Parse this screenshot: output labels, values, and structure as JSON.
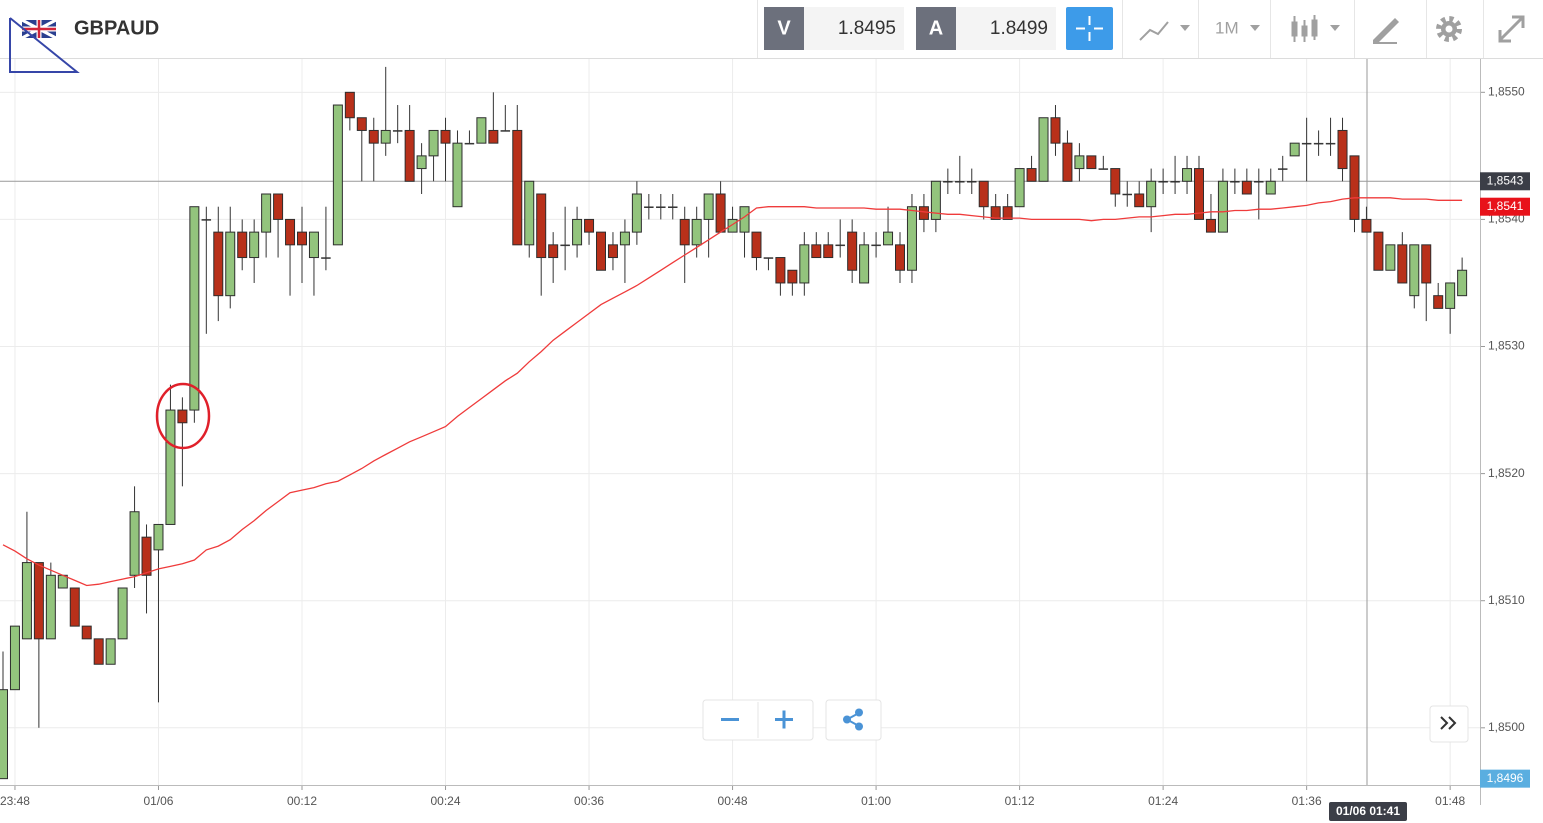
{
  "header": {
    "symbol": "GBPAUD",
    "bid_label": "V",
    "bid": 1.8495,
    "ask_label": "A",
    "ask": 1.8499,
    "timeframe": "1M"
  },
  "chart_data": {
    "type": "candlestick",
    "categories": [
      null,
      "23:48",
      null,
      null,
      null,
      null,
      null,
      null,
      null,
      null,
      null,
      null,
      null,
      "01/06",
      null,
      null,
      null,
      null,
      null,
      null,
      null,
      null,
      null,
      null,
      null,
      "00:12",
      null,
      null,
      null,
      null,
      null,
      null,
      null,
      null,
      null,
      null,
      null,
      "00:24",
      null,
      null,
      null,
      null,
      null,
      null,
      null,
      null,
      null,
      null,
      null,
      "00:36",
      null,
      null,
      null,
      null,
      null,
      null,
      null,
      null,
      null,
      null,
      null,
      "00:48",
      null,
      null,
      null,
      null,
      null,
      null,
      null,
      null,
      null,
      null,
      null,
      "01:00",
      null,
      null,
      null,
      null,
      null,
      null,
      null,
      null,
      null,
      null,
      null,
      "01:12",
      null,
      null,
      null,
      null,
      null,
      null,
      null,
      null,
      null,
      null,
      null,
      "01:24",
      null,
      null,
      null,
      null,
      null,
      null,
      null,
      null,
      null,
      null,
      null,
      "01:36",
      null,
      null,
      null,
      null,
      null,
      null,
      null,
      null,
      null,
      null,
      null,
      "01:48",
      null
    ],
    "open": [
      1.8496,
      1.8503,
      1.8507,
      1.8513,
      1.8507,
      1.8511,
      1.8511,
      1.8508,
      1.8507,
      1.8505,
      1.8507,
      1.8512,
      1.8515,
      1.8514,
      1.8516,
      1.8525,
      1.8525,
      1.854,
      1.8539,
      1.8534,
      1.8539,
      1.8537,
      1.8539,
      1.8542,
      1.854,
      1.8539,
      1.8537,
      1.8537,
      1.8538,
      1.855,
      1.8548,
      1.8547,
      1.8546,
      1.8547,
      1.8547,
      1.8544,
      1.8545,
      1.8547,
      1.8541,
      1.8546,
      1.8546,
      1.8547,
      1.8547,
      1.8547,
      1.8538,
      1.8542,
      1.8538,
      1.8538,
      1.8538,
      1.854,
      1.8539,
      1.8538,
      1.8538,
      1.8539,
      1.8541,
      1.8541,
      1.8541,
      1.854,
      1.8538,
      1.854,
      1.8542,
      1.8539,
      1.8539,
      1.8539,
      1.8537,
      1.8537,
      1.8536,
      1.8535,
      1.8538,
      1.8538,
      1.8538,
      1.8539,
      1.8535,
      1.8538,
      1.8538,
      1.8538,
      1.8536,
      1.8541,
      1.854,
      1.8543,
      1.8543,
      1.8543,
      1.8543,
      1.8541,
      1.8541,
      1.8541,
      1.8544,
      1.8543,
      1.8548,
      1.8546,
      1.8544,
      1.8545,
      1.8544,
      1.8544,
      1.8542,
      1.8542,
      1.8541,
      1.8543,
      1.8543,
      1.8543,
      1.8544,
      1.854,
      1.8539,
      1.8543,
      1.8543,
      1.8543,
      1.8542,
      1.8544,
      1.8545,
      1.8546,
      1.8546,
      1.8546,
      1.8547,
      1.8545,
      1.854,
      1.8539,
      1.8536,
      1.8538,
      1.8534,
      1.8538,
      1.8534,
      1.8533,
      1.8534
    ],
    "high": [
      1.8506,
      1.8508,
      1.8517,
      1.8513,
      1.8513,
      1.8512,
      1.8511,
      1.8508,
      1.8507,
      1.8507,
      1.8511,
      1.8519,
      1.8516,
      1.8516,
      1.8527,
      1.8526,
      1.8541,
      1.8541,
      1.8541,
      1.8541,
      1.854,
      1.854,
      1.8542,
      1.8542,
      1.854,
      1.8541,
      1.8539,
      1.8541,
      1.8549,
      1.855,
      1.8548,
      1.8548,
      1.8552,
      1.8549,
      1.8549,
      1.8546,
      1.8547,
      1.8548,
      1.8547,
      1.8547,
      1.8548,
      1.855,
      1.8549,
      1.8549,
      1.8543,
      1.8542,
      1.8539,
      1.8541,
      1.8541,
      1.854,
      1.8539,
      1.8539,
      1.854,
      1.8543,
      1.8542,
      1.8542,
      1.8542,
      1.8541,
      1.8541,
      1.8542,
      1.8543,
      1.8541,
      1.8541,
      1.8539,
      1.8537,
      1.8537,
      1.8536,
      1.8539,
      1.8539,
      1.8539,
      1.854,
      1.854,
      1.8539,
      1.8539,
      1.8541,
      1.8539,
      1.8542,
      1.8542,
      1.8543,
      1.8544,
      1.8545,
      1.8544,
      1.8543,
      1.8542,
      1.8542,
      1.8544,
      1.8545,
      1.8548,
      1.8549,
      1.8547,
      1.8546,
      1.8545,
      1.8545,
      1.8544,
      1.8543,
      1.8543,
      1.8544,
      1.8544,
      1.8545,
      1.8545,
      1.8545,
      1.8542,
      1.8544,
      1.8544,
      1.8544,
      1.8544,
      1.8544,
      1.8545,
      1.8546,
      1.8548,
      1.8547,
      1.8548,
      1.8548,
      1.8545,
      1.8541,
      1.8539,
      1.8538,
      1.8539,
      1.8538,
      1.8538,
      1.8535,
      1.8535,
      1.8537
    ],
    "low": [
      1.8496,
      1.8503,
      1.8507,
      1.85,
      1.8507,
      1.8511,
      1.8508,
      1.8507,
      1.8505,
      1.8505,
      1.8507,
      1.8511,
      1.8509,
      1.8502,
      1.8516,
      1.8519,
      1.8524,
      1.8531,
      1.8532,
      1.8533,
      1.8536,
      1.8535,
      1.8537,
      1.8537,
      1.8534,
      1.8535,
      1.8534,
      1.8536,
      1.8538,
      1.8547,
      1.8543,
      1.8543,
      1.8545,
      1.8546,
      1.8543,
      1.8542,
      1.8543,
      1.8543,
      1.8541,
      1.8546,
      1.8546,
      1.8546,
      1.8547,
      1.8538,
      1.8537,
      1.8534,
      1.8535,
      1.8536,
      1.8537,
      1.8538,
      1.8536,
      1.8536,
      1.8535,
      1.8538,
      1.854,
      1.854,
      1.854,
      1.8535,
      1.8537,
      1.8537,
      1.8539,
      1.8539,
      1.8537,
      1.8536,
      1.8536,
      1.8534,
      1.8534,
      1.8534,
      1.8537,
      1.8537,
      1.8537,
      1.8535,
      1.8535,
      1.8537,
      1.8538,
      1.8535,
      1.8535,
      1.8539,
      1.8539,
      1.8542,
      1.8542,
      1.8542,
      1.854,
      1.854,
      1.854,
      1.8541,
      1.8543,
      1.8543,
      1.8545,
      1.8543,
      1.8543,
      1.8544,
      1.8544,
      1.8541,
      1.8541,
      1.8541,
      1.8539,
      1.8542,
      1.8542,
      1.8542,
      1.854,
      1.8539,
      1.8539,
      1.8542,
      1.8542,
      1.854,
      1.8542,
      1.8543,
      1.8545,
      1.8543,
      1.8545,
      1.8545,
      1.8543,
      1.8539,
      1.8539,
      1.8536,
      1.8536,
      1.8535,
      1.8533,
      1.8532,
      1.8533,
      1.8531,
      1.8534
    ],
    "close": [
      1.8503,
      1.8508,
      1.8513,
      1.8507,
      1.8512,
      1.8512,
      1.8508,
      1.8507,
      1.8505,
      1.8507,
      1.8511,
      1.8517,
      1.8512,
      1.8516,
      1.8525,
      1.8524,
      1.8541,
      1.854,
      1.8534,
      1.8539,
      1.8537,
      1.8539,
      1.8542,
      1.854,
      1.8538,
      1.8538,
      1.8539,
      1.8537,
      1.8549,
      1.8548,
      1.8547,
      1.8546,
      1.8547,
      1.8547,
      1.8543,
      1.8545,
      1.8547,
      1.8546,
      1.8546,
      1.8546,
      1.8548,
      1.8546,
      1.8547,
      1.8538,
      1.8543,
      1.8537,
      1.8537,
      1.8538,
      1.854,
      1.8539,
      1.8536,
      1.8537,
      1.8539,
      1.8542,
      1.8541,
      1.8541,
      1.8541,
      1.8538,
      1.854,
      1.8542,
      1.8539,
      1.854,
      1.8541,
      1.8537,
      1.8537,
      1.8535,
      1.8535,
      1.8538,
      1.8537,
      1.8537,
      1.8538,
      1.8536,
      1.8538,
      1.8538,
      1.8539,
      1.8536,
      1.8541,
      1.854,
      1.8543,
      1.8543,
      1.8543,
      1.8543,
      1.8541,
      1.854,
      1.854,
      1.8544,
      1.8543,
      1.8548,
      1.8546,
      1.8543,
      1.8545,
      1.8544,
      1.8544,
      1.8542,
      1.8542,
      1.8541,
      1.8543,
      1.8543,
      1.8543,
      1.8544,
      1.854,
      1.8539,
      1.8543,
      1.8543,
      1.8542,
      1.8543,
      1.8543,
      1.8544,
      1.8546,
      1.8546,
      1.8546,
      1.8546,
      1.8544,
      1.854,
      1.8539,
      1.8536,
      1.8538,
      1.8535,
      1.8538,
      1.8535,
      1.8533,
      1.8535,
      1.8536
    ],
    "up_color": "#93c47d",
    "down_color": "#b8301a",
    "wick_color": "#333333",
    "overlay": {
      "color": "#ef3b3b",
      "values": [
        1.85144,
        1.85139,
        1.85133,
        1.85128,
        1.85124,
        1.8512,
        1.85116,
        1.85112,
        1.85113,
        1.85115,
        1.85117,
        1.85119,
        1.85122,
        1.85125,
        1.85127,
        1.85129,
        1.85132,
        1.8514,
        1.85143,
        1.85148,
        1.85156,
        1.85163,
        1.85171,
        1.85178,
        1.85185,
        1.85187,
        1.85189,
        1.85192,
        1.85194,
        1.85199,
        1.85204,
        1.8521,
        1.85215,
        1.8522,
        1.85225,
        1.85229,
        1.85233,
        1.85237,
        1.85245,
        1.85252,
        1.85259,
        1.85266,
        1.85273,
        1.85279,
        1.85288,
        1.85296,
        1.85305,
        1.85312,
        1.85319,
        1.85326,
        1.85333,
        1.85338,
        1.85343,
        1.85348,
        1.85354,
        1.8536,
        1.85366,
        1.85372,
        1.85378,
        1.85384,
        1.8539,
        1.85396,
        1.85402,
        1.85409,
        1.8541,
        1.8541,
        1.8541,
        1.8541,
        1.85409,
        1.85409,
        1.85409,
        1.85409,
        1.85409,
        1.85408,
        1.85408,
        1.85408,
        1.85407,
        1.85406,
        1.85405,
        1.85404,
        1.85404,
        1.85403,
        1.85402,
        1.85401,
        1.85401,
        1.85401,
        1.854,
        1.854,
        1.854,
        1.854,
        1.854,
        1.85399,
        1.854,
        1.854,
        1.85401,
        1.85402,
        1.85402,
        1.85403,
        1.85404,
        1.85404,
        1.85405,
        1.85406,
        1.85406,
        1.85407,
        1.85407,
        1.85408,
        1.85408,
        1.85409,
        1.8541,
        1.85411,
        1.85413,
        1.85414,
        1.85416,
        1.85417,
        1.85417,
        1.85417,
        1.85417,
        1.85416,
        1.85416,
        1.85416,
        1.85415,
        1.85415,
        1.85415
      ]
    },
    "ylim": [
      1.84955,
      1.85527
    ],
    "yticks": [
      {
        "value": 1.85,
        "label": "1,8500"
      },
      {
        "value": 1.851,
        "label": "1,8510"
      },
      {
        "value": 1.852,
        "label": "1,8520"
      },
      {
        "value": 1.853,
        "label": "1,8530"
      },
      {
        "value": 1.854,
        "label": "1,8540"
      },
      {
        "value": 1.855,
        "label": "1,8550"
      }
    ],
    "grid": true,
    "crosshair": {
      "price": {
        "value": 1.8543,
        "label": "1,8543"
      },
      "time": "01/06 01:41"
    },
    "price_labels": [
      {
        "value": 1.8541,
        "label": "1,8541",
        "color": "#e8121a"
      },
      {
        "value": 1.8496,
        "label": "1,8496",
        "color": "#5aaee0"
      }
    ]
  }
}
